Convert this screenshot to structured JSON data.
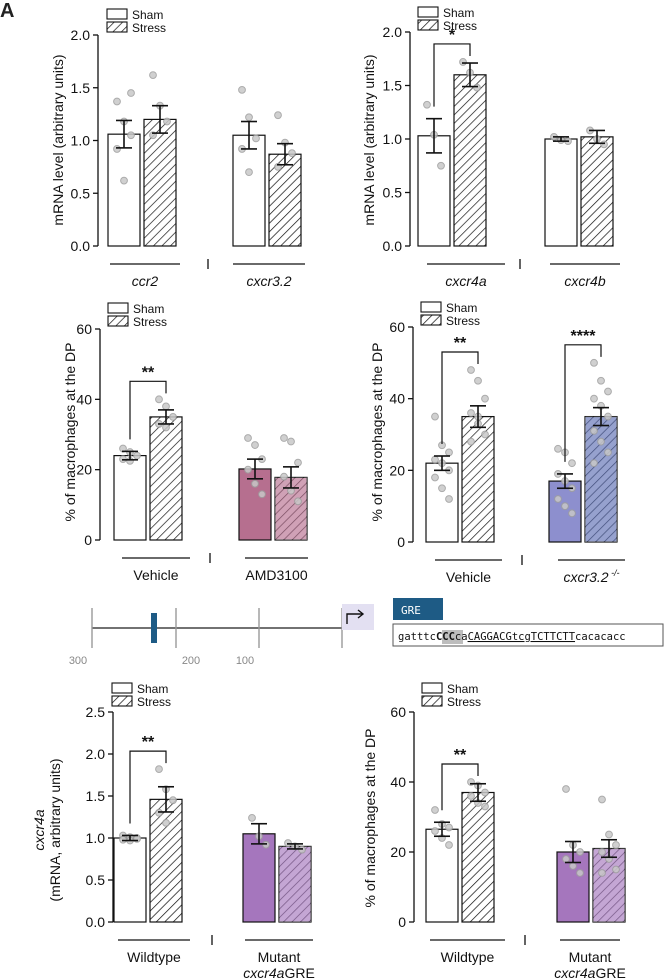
{
  "figure": {
    "panel_letter": "A"
  },
  "colors": {
    "ink": "#111111",
    "gray_tick": "#9a9a9a",
    "dot_fill": "#c8c8c8",
    "dot_edge": "#9e9e9e",
    "amd": "#b66f8f",
    "kogreen": "#8d8fce",
    "koblue": "#5d6fb4",
    "mutant": "#a576bd",
    "gre_box": "#1e5b85"
  },
  "chart_data": [
    {
      "id": "p1",
      "type": "bar",
      "title": "",
      "ylabel": "mRNA level (arbitrary units)",
      "ylim": [
        0,
        2.0
      ],
      "yticks": [
        "0.0",
        "0.5",
        "1.0",
        "1.5",
        "2.0"
      ],
      "legend": [
        "Sham",
        "Stress"
      ],
      "groups": [
        {
          "label": "ccr2",
          "italic": true,
          "sham": {
            "mean": 1.06,
            "err": 0.13,
            "fill": "white",
            "dots": [
              1.37,
              1.18,
              1.05,
              0.92,
              0.62,
              1.45
            ]
          },
          "stress": {
            "mean": 1.2,
            "err": 0.13,
            "fill": "white",
            "dots": [
              1.62,
              1.33,
              1.18,
              1.05
            ]
          }
        },
        {
          "label": "cxcr3.2",
          "italic": true,
          "sham": {
            "mean": 1.05,
            "err": 0.13,
            "fill": "white",
            "dots": [
              1.48,
              1.22,
              1.02,
              0.92,
              0.7
            ]
          },
          "stress": {
            "mean": 0.87,
            "err": 0.1,
            "fill": "white",
            "dots": [
              1.24,
              0.98,
              0.88,
              0.75
            ]
          }
        }
      ],
      "significance": []
    },
    {
      "id": "p2",
      "type": "bar",
      "title": "",
      "ylabel": "mRNA level (arbitrary units)",
      "ylim": [
        0,
        2.0
      ],
      "yticks": [
        "0.0",
        "0.5",
        "1.0",
        "1.5",
        "2.0"
      ],
      "legend": [
        "Sham",
        "Stress"
      ],
      "groups": [
        {
          "label": "cxcr4a",
          "italic": true,
          "sham": {
            "mean": 1.03,
            "err": 0.16,
            "fill": "white",
            "dots": [
              1.32,
              1.04,
              0.75
            ]
          },
          "stress": {
            "mean": 1.6,
            "err": 0.11,
            "fill": "white",
            "dots": [
              1.72,
              1.62,
              1.48
            ]
          }
        },
        {
          "label": "cxcr4b",
          "italic": true,
          "sham": {
            "mean": 1.0,
            "err": 0.02,
            "fill": "white",
            "dots": [
              1.02,
              0.99,
              0.98
            ]
          },
          "stress": {
            "mean": 1.02,
            "err": 0.06,
            "fill": "white",
            "dots": [
              1.08,
              1.0,
              0.95
            ]
          }
        }
      ],
      "significance": [
        {
          "group": 0,
          "label": "*"
        }
      ]
    },
    {
      "id": "p3",
      "type": "bar",
      "title": "",
      "ylabel": "% of macrophages at the DP",
      "ylim": [
        0,
        60
      ],
      "yticks": [
        "0",
        "20",
        "40",
        "60"
      ],
      "legend": [
        "Sham",
        "Stress"
      ],
      "groups": [
        {
          "label": "Vehicle",
          "italic": false,
          "sham": {
            "mean": 24,
            "err": 1.2,
            "fill": "white",
            "dots": [
              26,
              25,
              24,
              23,
              22.5
            ]
          },
          "stress": {
            "mean": 35,
            "err": 2,
            "fill": "white",
            "dots": [
              40,
              38,
              35,
              33,
              32
            ]
          }
        },
        {
          "label": "AMD3100",
          "italic": false,
          "sham": {
            "mean": 20.2,
            "err": 2.8,
            "fill": "amd",
            "dots": [
              29,
              27,
              23,
              20,
              16,
              13
            ]
          },
          "stress": {
            "mean": 17.8,
            "err": 3,
            "fill": "amd",
            "dots": [
              29,
              28,
              22,
              18,
              14,
              11
            ]
          }
        }
      ],
      "significance": [
        {
          "group": 0,
          "label": "**"
        }
      ]
    },
    {
      "id": "p4",
      "type": "bar",
      "title": "",
      "ylabel": "% of macrophages at the DP",
      "ylim": [
        0,
        60
      ],
      "yticks": [
        "0",
        "20",
        "40",
        "60"
      ],
      "legend": [
        "Sham",
        "Stress"
      ],
      "groups": [
        {
          "label": "Vehicle",
          "italic": false,
          "sham": {
            "mean": 22,
            "err": 2,
            "fill": "white",
            "dots": [
              35,
              27,
              25,
              23,
              22,
              20,
              18,
              15,
              12
            ]
          },
          "stress": {
            "mean": 35,
            "err": 3,
            "fill": "white",
            "dots": [
              48,
              45,
              40,
              36,
              33,
              30,
              28,
              35
            ]
          }
        },
        {
          "label": "cxcr3.2",
          "italic": true,
          "sup": "-/-",
          "sham": {
            "mean": 17,
            "err": 2,
            "fill": "kogreen",
            "dots": [
              26,
              25,
              22,
              19,
              17,
              15,
              12,
              10,
              8
            ]
          },
          "stress": {
            "mean": 35,
            "err": 2.5,
            "fill": "koblue",
            "dots": [
              50,
              45,
              42,
              40,
              38,
              35,
              31,
              28,
              25,
              22
            ]
          }
        }
      ],
      "significance": [
        {
          "group": 0,
          "label": "**"
        },
        {
          "group": 1,
          "label": "****"
        }
      ]
    },
    {
      "id": "p5",
      "type": "bar",
      "title": "",
      "ylabel_italic": "cxcr4a",
      "ylabel": "(mRNA, arbitrary units)",
      "ylim": [
        0,
        2.5
      ],
      "yticks": [
        "0.0",
        "0.5",
        "1.0",
        "1.5",
        "2.0",
        "2.5"
      ],
      "legend": [
        "Sham",
        "Stress"
      ],
      "groups": [
        {
          "label": "Wildtype",
          "italic": false,
          "sham": {
            "mean": 1.0,
            "err": 0.03,
            "fill": "white",
            "dots": [
              1.03,
              1.01,
              1.0,
              0.98,
              0.97,
              0.99
            ]
          },
          "stress": {
            "mean": 1.46,
            "err": 0.15,
            "fill": "white",
            "dots": [
              1.82,
              1.58,
              1.45,
              1.3,
              1.18
            ]
          }
        },
        {
          "label": "Mutant",
          "label2": "cxcr4aGRE",
          "italic": false,
          "sham": {
            "mean": 1.05,
            "err": 0.12,
            "fill": "mutant",
            "dots": [
              1.24,
              1.02,
              0.92
            ]
          },
          "stress": {
            "mean": 0.9,
            "err": 0.03,
            "fill": "mutant",
            "dots": [
              0.94,
              0.9,
              0.86
            ]
          }
        }
      ],
      "significance": [
        {
          "group": 0,
          "label": "**"
        }
      ]
    },
    {
      "id": "p6",
      "type": "bar",
      "title": "",
      "ylabel": "% of macrophages at the DP",
      "ylim": [
        0,
        60
      ],
      "yticks": [
        "0",
        "20",
        "40",
        "60"
      ],
      "legend": [
        "Sham",
        "Stress"
      ],
      "groups": [
        {
          "label": "Wildtype",
          "italic": false,
          "sham": {
            "mean": 26.5,
            "err": 2,
            "fill": "white",
            "dots": [
              32,
              28,
              27,
              26,
              24,
              22
            ]
          },
          "stress": {
            "mean": 37,
            "err": 2.5,
            "fill": "white",
            "dots": [
              40,
              39,
              37,
              36,
              34,
              33
            ]
          }
        },
        {
          "label": "Mutant",
          "label2": "cxcr4aGRE",
          "italic": false,
          "sham": {
            "mean": 20,
            "err": 3,
            "fill": "mutant",
            "dots": [
              38,
              22,
              20,
              18,
              16,
              14
            ]
          },
          "stress": {
            "mean": 21,
            "err": 2.5,
            "fill": "mutant",
            "dots": [
              35,
              25,
              22,
              20,
              18,
              15,
              14
            ]
          }
        }
      ],
      "significance": [
        {
          "group": 0,
          "label": "**"
        }
      ]
    }
  ],
  "promoter": {
    "ticks": [
      "300",
      "200",
      "100"
    ],
    "gre_label": "GRE",
    "sequence": {
      "a": "gatttc",
      "b": "CCC",
      "c": "ca",
      "d": "CAGGACGtcgTCTTCTT",
      "e": "cacacacc"
    }
  }
}
